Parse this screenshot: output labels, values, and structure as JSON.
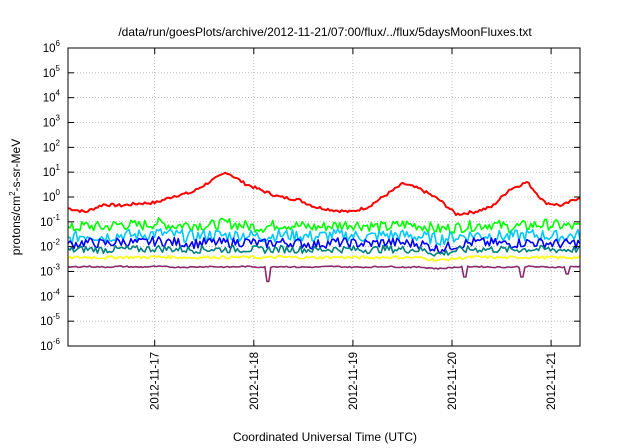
{
  "chart_data": {
    "type": "line",
    "title": "/data/run/goesPlots/archive/2012-11-21/07:00/flux/../flux/5daysMoonFluxes.txt",
    "xlabel": "Coordinated Universal Time (UTC)",
    "ylabel": {
      "prefix": "protons/cm",
      "sup": "2",
      "suffix": "-s-sr-MeV"
    },
    "x_range": [
      "2012-11-16 03:00",
      "2012-11-21 07:00"
    ],
    "x_tick_labels": [
      "2012-11-17",
      "2012-11-18",
      "2012-11-19",
      "2012-11-20",
      "2012-11-21"
    ],
    "y_scale": "log",
    "ylim": [
      1e-06,
      1000000.0
    ],
    "y_tick_labels": [
      {
        "base": "10",
        "exp": "6"
      },
      {
        "base": "10",
        "exp": "5"
      },
      {
        "base": "10",
        "exp": "4"
      },
      {
        "base": "10",
        "exp": "3"
      },
      {
        "base": "10",
        "exp": "2"
      },
      {
        "base": "10",
        "exp": "1"
      },
      {
        "base": "10",
        "exp": "0"
      },
      {
        "base": "10",
        "exp": "-1"
      },
      {
        "base": "10",
        "exp": "-2"
      },
      {
        "base": "10",
        "exp": "-3"
      },
      {
        "base": "10",
        "exp": "-4"
      },
      {
        "base": "10",
        "exp": "-5"
      },
      {
        "base": "10",
        "exp": "-6"
      }
    ],
    "grid": true,
    "x_day_hours": [
      0,
      6,
      12,
      18,
      24,
      30,
      36,
      42,
      48,
      54,
      60,
      66,
      72,
      78,
      84,
      90,
      96,
      102,
      108,
      114,
      120,
      124
    ],
    "series": [
      {
        "color": "#ff0000",
        "values": [
          0.35,
          0.25,
          0.5,
          0.45,
          0.55,
          0.6,
          1.1,
          1.5,
          4.0,
          10.0,
          3.5,
          1.8,
          1.0,
          0.8,
          0.4,
          0.3,
          0.25,
          0.4,
          1.2,
          3.5,
          2.0,
          0.8,
          0.2,
          0.25,
          0.4,
          2.0,
          4.0,
          0.6,
          0.45,
          1.0
        ]
      },
      {
        "color": "#00ff00",
        "values": [
          0.05,
          0.07,
          0.06,
          0.08,
          0.07,
          0.09,
          0.07,
          0.08,
          0.07,
          0.09,
          0.07,
          0.06,
          0.08,
          0.07,
          0.06,
          0.07,
          0.08,
          0.07,
          0.06,
          0.08,
          0.07,
          0.05,
          0.06,
          0.07,
          0.08,
          0.06,
          0.07,
          0.08,
          0.07,
          0.06
        ]
      },
      {
        "color": "#00c8ff",
        "values": [
          0.02,
          0.03,
          0.025,
          0.03,
          0.028,
          0.035,
          0.03,
          0.025,
          0.03,
          0.028,
          0.03,
          0.025,
          0.03,
          0.028,
          0.025,
          0.03,
          0.028,
          0.025,
          0.03,
          0.028,
          0.025,
          0.02,
          0.025,
          0.03,
          0.028,
          0.025,
          0.03,
          0.028,
          0.025,
          0.03
        ]
      },
      {
        "color": "#0000ff",
        "values": [
          0.012,
          0.015,
          0.013,
          0.016,
          0.014,
          0.017,
          0.015,
          0.013,
          0.015,
          0.014,
          0.016,
          0.013,
          0.015,
          0.014,
          0.012,
          0.015,
          0.014,
          0.013,
          0.015,
          0.014,
          0.013,
          0.008,
          0.012,
          0.015,
          0.014,
          0.013,
          0.015,
          0.014,
          0.013,
          0.014
        ]
      },
      {
        "color": "#008080",
        "values": [
          0.007,
          0.008,
          0.0075,
          0.008,
          0.0078,
          0.0085,
          0.008,
          0.0075,
          0.008,
          0.0078,
          0.008,
          0.0075,
          0.008,
          0.0078,
          0.0075,
          0.008,
          0.0078,
          0.0075,
          0.008,
          0.0078,
          0.0075,
          0.005,
          0.007,
          0.008,
          0.0078,
          0.0075,
          0.008,
          0.0078,
          0.0075,
          0.008
        ]
      },
      {
        "color": "#ffff00",
        "values": [
          0.0035,
          0.0038,
          0.0036,
          0.0038,
          0.0037,
          0.0039,
          0.0038,
          0.0036,
          0.0038,
          0.0037,
          0.0038,
          0.0036,
          0.0038,
          0.0037,
          0.0036,
          0.0038,
          0.0037,
          0.0036,
          0.0038,
          0.0037,
          0.0036,
          0.0028,
          0.0034,
          0.0038,
          0.0037,
          0.0036,
          0.0038,
          0.0037,
          0.0036,
          0.0037
        ]
      },
      {
        "color": "#8b2b6b",
        "values": [
          0.0015,
          0.0016,
          0.0015,
          0.0016,
          0.0015,
          0.0016,
          0.0015,
          0.0015,
          0.0016,
          0.0015,
          0.0016,
          0.0015,
          0.0016,
          0.0015,
          0.0015,
          0.0016,
          0.0015,
          0.0015,
          0.0016,
          0.0015,
          0.0015,
          0.0013,
          0.0015,
          0.0016,
          0.0015,
          0.0015,
          0.0016,
          0.0015,
          0.0015,
          0.0016
        ]
      }
    ],
    "series_dips": [
      {
        "series": 6,
        "hour": 48.5,
        "value": 0.0004
      },
      {
        "series": 6,
        "hour": 96.0,
        "value": 0.0006
      },
      {
        "series": 6,
        "hour": 110.0,
        "value": 0.0006
      },
      {
        "series": 6,
        "hour": 121.0,
        "value": 0.0008
      }
    ]
  }
}
